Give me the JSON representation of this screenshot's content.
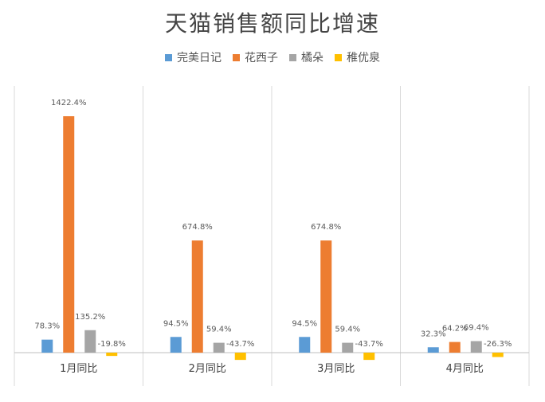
{
  "chart_data": {
    "type": "bar",
    "title": "天猫销售额同比增速",
    "categories": [
      "1月同比",
      "2月同比",
      "3月同比",
      "4月同比"
    ],
    "series": [
      {
        "name": "完美日记",
        "color": "#5B9BD5",
        "values": [
          78.3,
          94.5,
          94.5,
          32.3
        ],
        "labels": [
          "78.3%",
          "94.5%",
          "94.5%",
          "32.3%"
        ]
      },
      {
        "name": "花西子",
        "color": "#ED7D31",
        "values": [
          1422.4,
          674.8,
          674.8,
          64.2
        ],
        "labels": [
          "1422.4%",
          "674.8%",
          "674.8%",
          "64.2%"
        ]
      },
      {
        "name": "橘朵",
        "color": "#A5A5A5",
        "values": [
          135.2,
          59.4,
          59.4,
          69.4
        ],
        "labels": [
          "135.2%",
          "59.4%",
          "59.4%",
          "69.4%"
        ]
      },
      {
        "name": "稚优泉",
        "color": "#FFC000",
        "values": [
          -19.8,
          -43.7,
          -43.7,
          -26.3
        ],
        "labels": [
          "-19.8%",
          "-43.7%",
          "-43.7%",
          "-26.3%"
        ]
      }
    ],
    "xlabel": "",
    "ylabel": "",
    "legend_position": "top",
    "grid": "vertical"
  }
}
